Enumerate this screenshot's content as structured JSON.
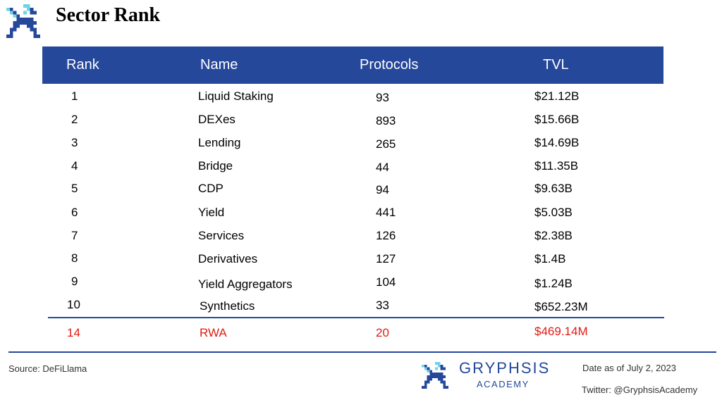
{
  "header": {
    "title": "Sector Rank"
  },
  "table": {
    "columns": [
      "Rank",
      "Name",
      "Protocols",
      "TVL"
    ],
    "rows": [
      {
        "rank": "1",
        "name": "Liquid Staking",
        "protocols": "93",
        "tvl": "$21.12B"
      },
      {
        "rank": "2",
        "name": "DEXes",
        "protocols": "893",
        "tvl": "$15.66B"
      },
      {
        "rank": "3",
        "name": "Lending",
        "protocols": "265",
        "tvl": "$14.69B"
      },
      {
        "rank": "4",
        "name": "Bridge",
        "protocols": "44",
        "tvl": "$11.35B"
      },
      {
        "rank": "5",
        "name": "CDP",
        "protocols": "94",
        "tvl": "$9.63B"
      },
      {
        "rank": "6",
        "name": "Yield",
        "protocols": "441",
        "tvl": "$5.03B"
      },
      {
        "rank": "7",
        "name": "Services",
        "protocols": "126",
        "tvl": "$2.38B"
      },
      {
        "rank": "8",
        "name": "Derivatives",
        "protocols": "127",
        "tvl": "$1.4B"
      },
      {
        "rank": "9",
        "name": "Yield Aggregators",
        "protocols": "104",
        "tvl": "$1.24B"
      },
      {
        "rank": "10",
        "name": "Synthetics",
        "protocols": "33",
        "tvl": "$652.23M"
      }
    ],
    "highlight_row": {
      "rank": "14",
      "name": "RWA",
      "protocols": "20",
      "tvl": "$469.14M"
    }
  },
  "footer": {
    "source": "Source: DeFiLlama",
    "brand_name": "GRYPHSIS",
    "brand_sub": "ACADEMY",
    "date": "Date as of July 2, 2023",
    "twitter": "Twitter: @GryphsisAcademy"
  },
  "colors": {
    "accent": "#25489a",
    "highlight": "#e21b12",
    "logo_light": "#6fd3e8"
  },
  "icons": {
    "logo": "gryphon-logo-icon"
  }
}
